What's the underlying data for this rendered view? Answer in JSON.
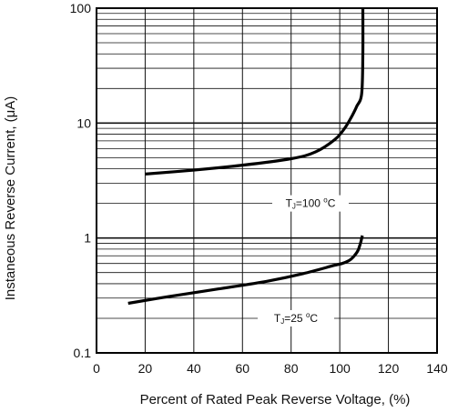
{
  "chart_data": {
    "type": "line",
    "title": "",
    "xlabel": "Percent of Rated Peak Reverse Voltage,  (%)",
    "ylabel": "Instaneous Reverse Current, (μA)",
    "xlim": [
      0,
      140
    ],
    "ylim": [
      0.1,
      100
    ],
    "yscale": "log",
    "grid": true,
    "x_ticks": [
      0,
      20,
      40,
      60,
      80,
      100,
      120,
      140
    ],
    "x_tick_labels": [
      "0",
      "20",
      "40",
      "60",
      "80",
      "100",
      "120",
      "140"
    ],
    "y_ticks": [
      0.1,
      1,
      10,
      100
    ],
    "y_tick_labels": [
      "0.1",
      "1",
      "10",
      "100"
    ],
    "series": [
      {
        "name": "Tⱼ=100 °C",
        "label": {
          "prefix": "T",
          "subscript": "J",
          "middle": "=100 ",
          "superscript": "o",
          "suffix": "C"
        },
        "x": [
          20,
          40,
          60,
          80,
          90,
          98,
          102,
          105,
          107,
          109,
          109.5,
          109.5
        ],
        "y": [
          3.6,
          3.9,
          4.3,
          4.9,
          5.6,
          7.2,
          9.0,
          11.5,
          14.0,
          18.0,
          40.0,
          100.0
        ]
      },
      {
        "name": "Tⱼ=25 °C",
        "label": {
          "prefix": "T",
          "subscript": "J",
          "middle": "=25 ",
          "superscript": "o",
          "suffix": "C"
        },
        "x": [
          13,
          30,
          50,
          70,
          85,
          98,
          101,
          104,
          106,
          107.5,
          108.5,
          109.3
        ],
        "y": [
          0.27,
          0.31,
          0.36,
          0.42,
          0.49,
          0.58,
          0.6,
          0.64,
          0.7,
          0.78,
          0.9,
          1.05
        ]
      }
    ]
  }
}
